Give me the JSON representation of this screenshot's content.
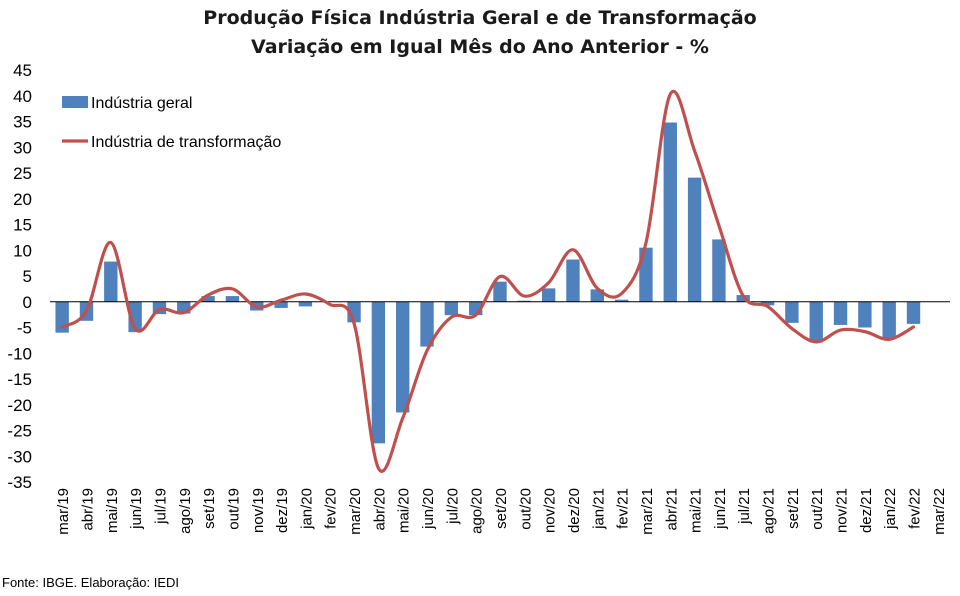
{
  "chart_data": {
    "type": "bar+line",
    "title": "Produção Física Indústria Geral e de Transformação",
    "subtitle": "Variação em Igual Mês do Ano Anterior - %",
    "categories": [
      "mar/19",
      "abr/19",
      "mai/19",
      "jun/19",
      "jul/19",
      "ago/19",
      "set/19",
      "out/19",
      "nov/19",
      "dez/19",
      "jan/20",
      "fev/20",
      "mar/20",
      "abr/20",
      "mai/20",
      "jun/20",
      "jul/20",
      "ago/20",
      "set/20",
      "out/20",
      "nov/20",
      "dez/20",
      "jan/21",
      "fev/21",
      "mar/21",
      "abr/21",
      "mai/21",
      "jun/21",
      "jul/21",
      "ago/21",
      "set/21",
      "out/21",
      "nov/21",
      "dez/21",
      "jan/22",
      "fev/22",
      "mar/22"
    ],
    "series": [
      {
        "name": "Indústria geral",
        "kind": "bar",
        "color": "#4f81bd",
        "values": [
          -6.0,
          -3.7,
          7.8,
          -5.9,
          -2.4,
          -2.3,
          1.1,
          1.1,
          -1.7,
          -1.2,
          -0.9,
          null,
          -4.0,
          -27.5,
          -21.5,
          -8.7,
          -2.6,
          -2.6,
          3.9,
          0.2,
          2.6,
          8.2,
          2.4,
          0.4,
          10.5,
          34.8,
          24.1,
          12.1,
          1.3,
          -0.7,
          -4.1,
          -7.9,
          -4.5,
          -5.0,
          -7.2,
          -4.3,
          null
        ]
      },
      {
        "name": "Indústria de transformação",
        "kind": "line",
        "color": "#c0504d",
        "values": [
          -4.9,
          -1.8,
          11.5,
          -5.2,
          -1.5,
          -2.1,
          1.3,
          2.5,
          -1.0,
          0.3,
          1.5,
          -0.5,
          -4.2,
          -32.3,
          -22.6,
          -9.5,
          -3.0,
          -2.6,
          4.9,
          1.1,
          3.7,
          10.1,
          2.6,
          1.6,
          11.4,
          40.3,
          29.3,
          14.8,
          1.1,
          -0.9,
          -5.2,
          -7.8,
          -5.5,
          -5.8,
          -7.3,
          -4.9,
          null
        ]
      }
    ],
    "ylim": [
      -35,
      45
    ],
    "yticks": [
      "45",
      "40",
      "35",
      "30",
      "25",
      "20",
      "15",
      "10",
      "5",
      "0",
      "-5",
      "-10",
      "-15",
      "-20",
      "-25",
      "-30",
      "-35"
    ],
    "ytick_values": [
      45,
      40,
      35,
      30,
      25,
      20,
      15,
      10,
      5,
      0,
      -5,
      -10,
      -15,
      -20,
      -25,
      -30,
      -35
    ],
    "legend": [
      {
        "label": "Indústria geral",
        "kind": "bar",
        "color": "#4f81bd"
      },
      {
        "label": "Indústria de transformação",
        "kind": "line",
        "color": "#c0504d"
      }
    ],
    "legend_position": "top-left",
    "grid": false
  },
  "source_note": "Fonte: IBGE. Elaboração: IEDI"
}
